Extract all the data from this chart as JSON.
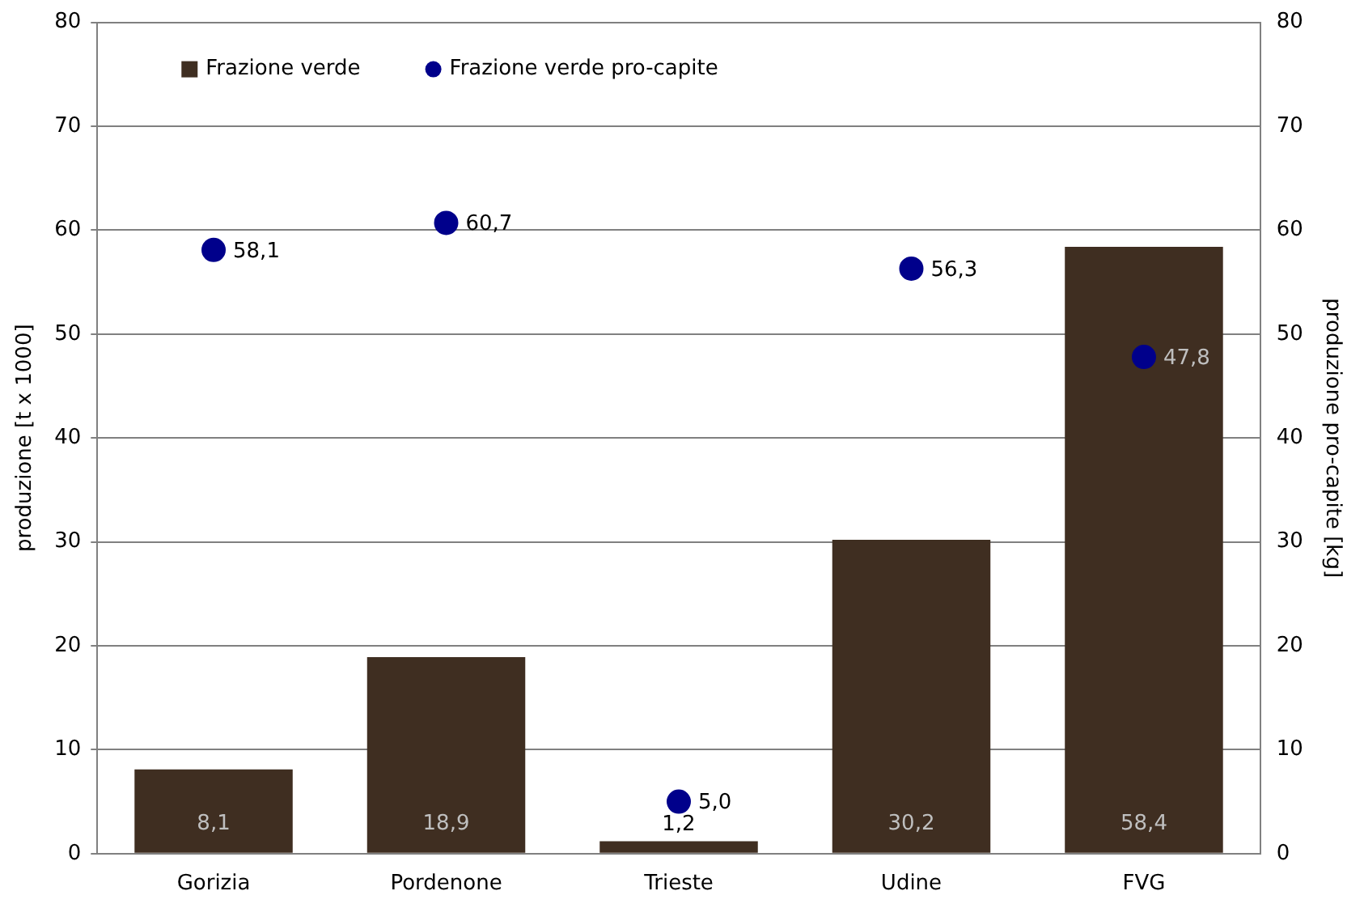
{
  "chart_data": {
    "type": "bar",
    "categories": [
      "Gorizia",
      "Pordenone",
      "Trieste",
      "Udine",
      "FVG"
    ],
    "ylabel": "produzione [t x 1000]",
    "y2label": "produzione pro-capite [kg]",
    "ylim": [
      0,
      80
    ],
    "yticks": [
      0,
      10,
      20,
      30,
      40,
      50,
      60,
      70,
      80
    ],
    "y2lim": [
      0,
      80
    ],
    "y2ticks": [
      0,
      10,
      20,
      30,
      40,
      50,
      60,
      70,
      80
    ],
    "grid": "y",
    "legend": "top left",
    "series": [
      {
        "name": "Frazione verde",
        "color": "#3f2e21",
        "values": [
          8.1,
          18.9,
          1.2,
          30.2,
          58.4
        ],
        "value_labels": [
          "8,1",
          "18,9",
          "1,2",
          "30,2",
          "58,4"
        ]
      },
      {
        "name": "Frazione verde pro-capite",
        "type": "scatter",
        "axis": "y2",
        "marker": "circle",
        "color": "#00008b",
        "values": [
          58.1,
          60.7,
          5.0,
          56.3,
          47.8
        ],
        "value_labels": [
          "58,1",
          "60,7",
          "5,0",
          "56,3",
          "47,8"
        ]
      }
    ]
  }
}
